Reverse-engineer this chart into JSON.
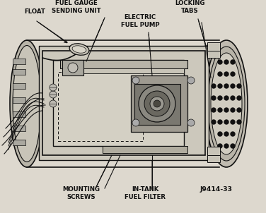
{
  "bg_color": "#e8e4dc",
  "fig_bg": "#ddd8ce",
  "ink": "#111111",
  "mid_gray": "#888880",
  "dark_gray": "#555550",
  "light_gray": "#ccc8be",
  "med_gray": "#999990",
  "labels": {
    "float": "FLOAT",
    "fuel_gauge": "FUEL GAUGE\nSENDING UNIT",
    "locking_tabs": "LOCKING\nTABS",
    "electric_fuel_pump": "ELECTRIC\nFUEL PUMP",
    "mounting_screws": "MOUNTING\nSCREWS",
    "in_tank_fuel_filter": "IN-TANK\nFUEL FILTER",
    "part_number": "J9414-33"
  }
}
